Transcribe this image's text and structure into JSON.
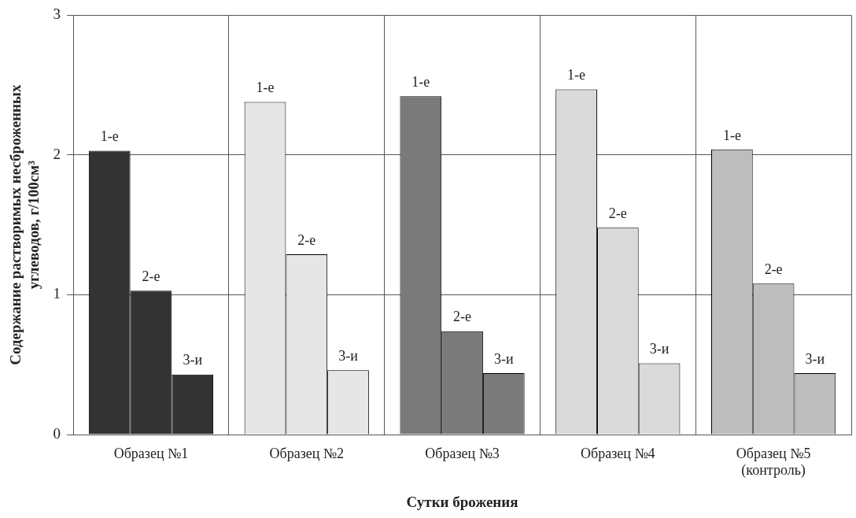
{
  "chart_data": {
    "type": "bar",
    "xlabel": "Сутки брожения",
    "ylabel": "Содержание растворимых несброженных углеводов, г/100см³",
    "categories": [
      "Образец №1",
      "Образец №2",
      "Образец №3",
      "Образец №4",
      "Образец №5 (контроль)"
    ],
    "series": [
      {
        "name": "1-е",
        "colors": [
          "#333333",
          "#e6e6e6",
          "#7a7a7a",
          "#dadada",
          "#bdbdbd"
        ],
        "values": [
          2.03,
          2.38,
          2.42,
          2.47,
          2.04
        ]
      },
      {
        "name": "2-е",
        "colors": [
          "#333333",
          "#e6e6e6",
          "#7a7a7a",
          "#dadada",
          "#bdbdbd"
        ],
        "values": [
          1.03,
          1.29,
          0.74,
          1.48,
          1.08
        ]
      },
      {
        "name": "3-и",
        "colors": [
          "#333333",
          "#e6e6e6",
          "#7a7a7a",
          "#dadada",
          "#bdbdbd"
        ],
        "values": [
          0.43,
          0.46,
          0.44,
          0.51,
          0.44
        ]
      }
    ],
    "ylim": [
      0,
      3
    ],
    "yticks": [
      0,
      1,
      2,
      3
    ],
    "grid": true,
    "legend": false
  }
}
